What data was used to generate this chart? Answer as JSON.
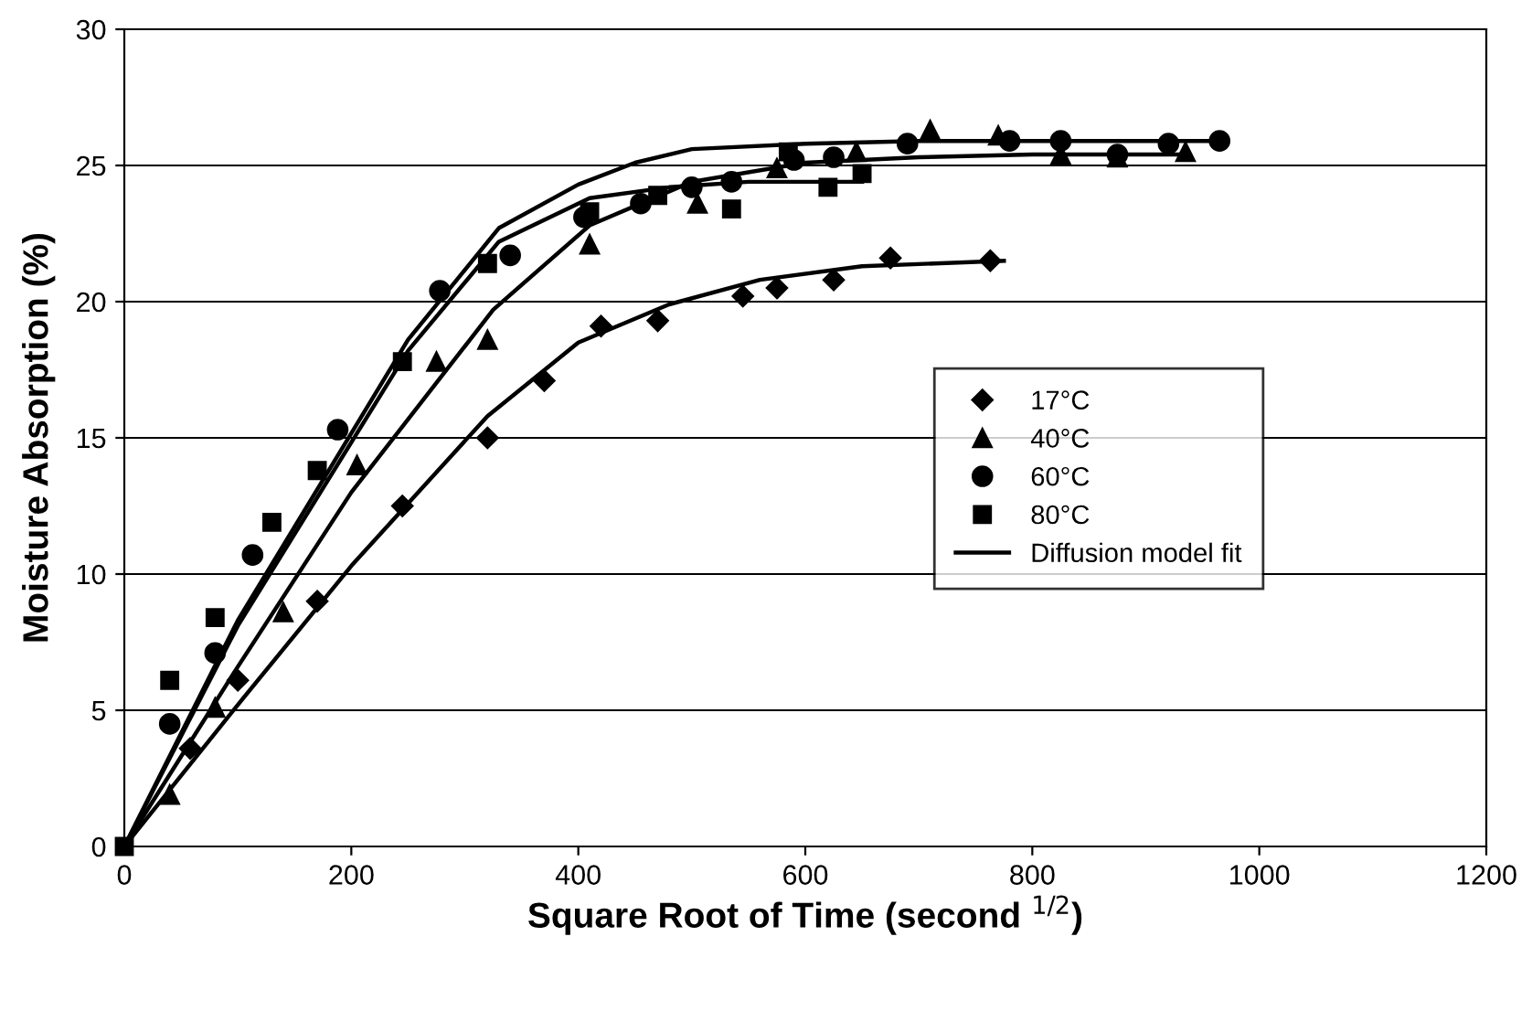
{
  "chart_data": {
    "type": "scatter",
    "xlabel": "Square Root of Time (second $^{1/2}$)",
    "ylabel": "Moisture Absorption (%)",
    "xlim": [
      0,
      1200
    ],
    "xticks": [
      0,
      200,
      400,
      600,
      800,
      1000,
      1200
    ],
    "ylim": [
      0,
      30
    ],
    "yticks": [
      0,
      5,
      10,
      15,
      20,
      25,
      30
    ],
    "grid": "y",
    "legend": "center right",
    "series": [
      {
        "name": "17°C",
        "marker": "diamond",
        "color": "#000000",
        "x": [
          58,
          100,
          170,
          245,
          320,
          370,
          420,
          470,
          545,
          575,
          625,
          675,
          763
        ],
        "values": [
          3.6,
          6.1,
          9.0,
          12.5,
          15.0,
          17.1,
          19.1,
          19.3,
          20.2,
          20.5,
          20.8,
          21.6,
          21.5
        ]
      },
      {
        "name": "40°C",
        "marker": "triangle",
        "color": "#000000",
        "x": [
          40,
          80,
          140,
          205,
          275,
          320,
          410,
          505,
          575,
          645,
          710,
          770,
          825,
          875,
          935
        ],
        "values": [
          1.9,
          5.1,
          8.6,
          14.0,
          17.8,
          18.6,
          22.1,
          23.6,
          24.9,
          25.5,
          26.3,
          26.1,
          25.4,
          25.3,
          25.5
        ]
      },
      {
        "name": "60°C",
        "marker": "circle",
        "color": "#000000",
        "x": [
          40,
          80,
          113,
          188,
          278,
          340,
          405,
          455,
          500,
          535,
          590,
          625,
          690,
          780,
          825,
          875,
          920,
          965
        ],
        "values": [
          4.5,
          7.1,
          10.7,
          15.3,
          20.4,
          21.7,
          23.1,
          23.6,
          24.2,
          24.4,
          25.2,
          25.3,
          25.8,
          25.9,
          25.9,
          25.4,
          25.8,
          25.9
        ]
      },
      {
        "name": "80°C",
        "marker": "square",
        "color": "#000000",
        "x": [
          0,
          40,
          80,
          130,
          170,
          245,
          320,
          410,
          470,
          535,
          585,
          620,
          650
        ],
        "values": [
          0,
          6.1,
          8.4,
          11.9,
          13.8,
          17.8,
          21.4,
          23.3,
          23.9,
          23.4,
          25.5,
          24.2,
          24.7
        ]
      },
      {
        "name": "Diffusion model fit",
        "type": "line",
        "marker": "none",
        "color": "#000000",
        "x": [
          0,
          100,
          200,
          320,
          400,
          480,
          560,
          650,
          775
        ],
        "values": [
          0,
          5.2,
          10.3,
          15.8,
          18.5,
          19.9,
          20.8,
          21.3,
          21.5
        ]
      },
      {
        "type": "line",
        "marker": "none",
        "color": "#000000",
        "x": [
          0,
          100,
          200,
          325,
          410,
          500,
          600,
          700,
          800,
          935
        ],
        "values": [
          0,
          6.6,
          13.0,
          19.7,
          22.8,
          24.4,
          25.1,
          25.3,
          25.4,
          25.4
        ]
      },
      {
        "type": "line",
        "marker": "none",
        "color": "#000000",
        "x": [
          0,
          100,
          250,
          330,
          400,
          450,
          500,
          600,
          700,
          965
        ],
        "values": [
          0,
          8.3,
          18.6,
          22.7,
          24.3,
          25.1,
          25.6,
          25.8,
          25.9,
          25.9
        ]
      },
      {
        "type": "line",
        "marker": "none",
        "color": "#000000",
        "x": [
          0,
          100,
          250,
          330,
          410,
          480,
          550,
          650
        ],
        "values": [
          0,
          8.1,
          18.2,
          22.2,
          23.8,
          24.2,
          24.4,
          24.4
        ]
      }
    ]
  }
}
